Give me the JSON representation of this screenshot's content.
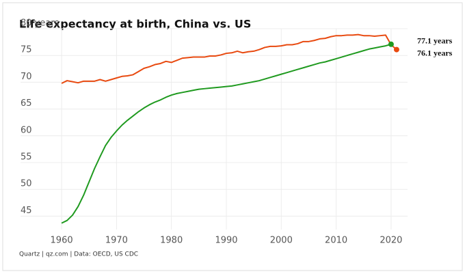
{
  "chart_data": {
    "type": "line",
    "title": "Life expectancy at birth, China vs. US",
    "source": "Quartz | qz.com | Data: OECD, US CDC",
    "x": [
      1960,
      1961,
      1962,
      1963,
      1964,
      1965,
      1966,
      1967,
      1968,
      1969,
      1970,
      1971,
      1972,
      1973,
      1974,
      1975,
      1976,
      1977,
      1978,
      1979,
      1980,
      1981,
      1982,
      1983,
      1984,
      1985,
      1986,
      1987,
      1988,
      1989,
      1990,
      1991,
      1992,
      1993,
      1994,
      1995,
      1996,
      1997,
      1998,
      1999,
      2000,
      2001,
      2002,
      2003,
      2004,
      2005,
      2006,
      2007,
      2008,
      2009,
      2010,
      2011,
      2012,
      2013,
      2014,
      2015,
      2016,
      2017,
      2018,
      2019,
      2020,
      2021
    ],
    "series": [
      {
        "color": "#e8490f",
        "values": [
          69.8,
          70.3,
          70.1,
          69.9,
          70.2,
          70.2,
          70.2,
          70.5,
          70.2,
          70.5,
          70.8,
          71.1,
          71.2,
          71.4,
          72.0,
          72.6,
          72.9,
          73.3,
          73.5,
          73.9,
          73.7,
          74.1,
          74.5,
          74.6,
          74.7,
          74.7,
          74.7,
          74.9,
          74.9,
          75.1,
          75.4,
          75.5,
          75.8,
          75.5,
          75.7,
          75.8,
          76.1,
          76.5,
          76.7,
          76.7,
          76.8,
          77.0,
          77.0,
          77.2,
          77.6,
          77.6,
          77.8,
          78.1,
          78.2,
          78.5,
          78.7,
          78.7,
          78.8,
          78.8,
          78.9,
          78.7,
          78.7,
          78.6,
          78.7,
          78.8,
          77.0,
          76.1
        ],
        "value_labels": [
          null,
          null,
          null,
          null,
          null,
          null,
          null,
          null,
          null,
          null,
          null,
          null,
          null,
          null,
          null,
          null,
          null,
          null,
          null,
          null,
          null,
          null,
          null,
          null,
          null,
          null,
          null,
          null,
          null,
          null,
          null,
          null,
          null,
          null,
          null,
          null,
          null,
          null,
          null,
          null,
          null,
          null,
          null,
          null,
          null,
          null,
          null,
          null,
          null,
          null,
          null,
          null,
          null,
          null,
          null,
          null,
          null,
          null,
          null,
          null,
          null,
          "76.1 years"
        ]
      },
      {
        "color": "#1f9a1f",
        "values": [
          43.7,
          44.2,
          45.2,
          46.8,
          48.9,
          51.4,
          53.9,
          56.1,
          58.2,
          59.7,
          60.9,
          62.0,
          62.9,
          63.7,
          64.5,
          65.2,
          65.8,
          66.3,
          66.7,
          67.2,
          67.6,
          67.9,
          68.1,
          68.3,
          68.5,
          68.7,
          68.8,
          68.9,
          69.0,
          69.1,
          69.2,
          69.3,
          69.5,
          69.7,
          69.9,
          70.1,
          70.3,
          70.6,
          70.9,
          71.2,
          71.5,
          71.8,
          72.1,
          72.4,
          72.7,
          73.0,
          73.3,
          73.6,
          73.8,
          74.1,
          74.4,
          74.7,
          75.0,
          75.3,
          75.6,
          75.9,
          76.2,
          76.4,
          76.6,
          76.8,
          77.1,
          null
        ],
        "value_labels": [
          null,
          null,
          null,
          null,
          null,
          null,
          null,
          null,
          null,
          null,
          null,
          null,
          null,
          null,
          null,
          null,
          null,
          null,
          null,
          null,
          null,
          null,
          null,
          null,
          null,
          null,
          null,
          null,
          null,
          null,
          null,
          null,
          null,
          null,
          null,
          null,
          null,
          null,
          null,
          null,
          null,
          null,
          null,
          null,
          null,
          null,
          null,
          null,
          null,
          null,
          null,
          null,
          null,
          null,
          null,
          null,
          null,
          null,
          null,
          null,
          "77.1 years",
          null
        ]
      }
    ],
    "xlim": [
      1957,
      2023
    ],
    "xticks": [
      1960,
      1970,
      1980,
      1990,
      2000,
      2010,
      2020
    ],
    "ylim": [
      42.5,
      80
    ],
    "yticks": [
      {
        "value": 80,
        "label": "80 years"
      },
      75,
      70,
      65,
      60,
      55,
      50,
      45
    ],
    "grid": true
  }
}
